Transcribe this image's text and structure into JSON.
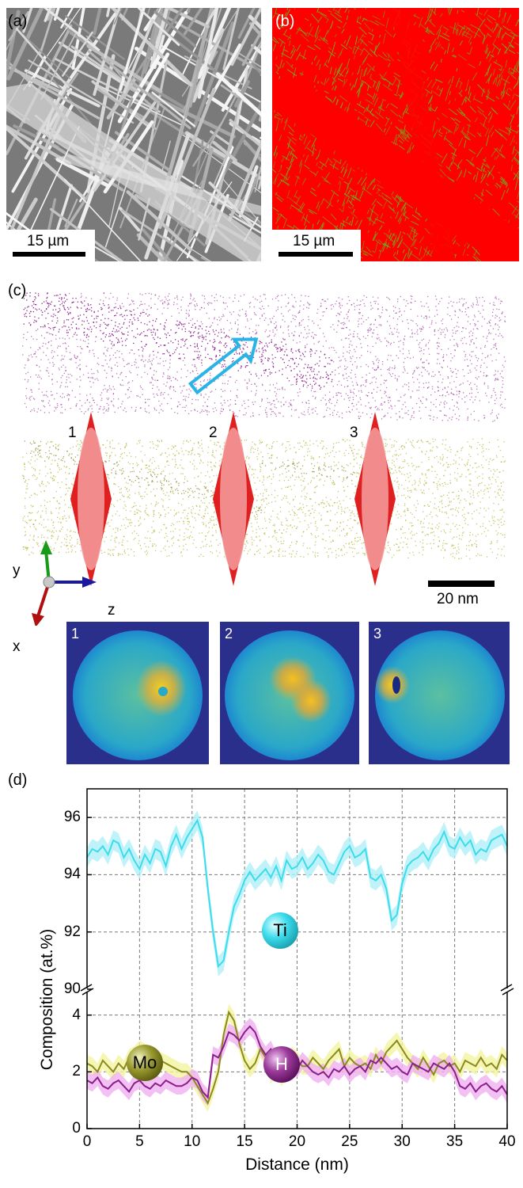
{
  "panels": {
    "a": {
      "label": "(a)",
      "scale": "15 µm"
    },
    "b": {
      "label": "(b)",
      "scale": "15 µm"
    },
    "c": {
      "label": "(c)",
      "scale": "20 nm",
      "markers": [
        "1",
        "2",
        "3"
      ],
      "axes": {
        "y": "y",
        "x": "x",
        "z": "z"
      },
      "slices": [
        "1",
        "2",
        "3"
      ]
    },
    "d": {
      "label": "(d)"
    }
  },
  "colors": {
    "panel_b_phase": "#ff0000",
    "panel_b_secondary": "#6fa81e",
    "cloud_top": "#8a1e8a",
    "cloud_bottom": "#b4b43a",
    "arrow": "#28b4e6",
    "marker": "#e83030",
    "slice_bg": "#2b2f8c",
    "ti": "#3cdcec",
    "mo": "#8a8a20",
    "h": "#8a1e8a"
  },
  "chart_data": {
    "type": "line",
    "xlabel": "Distance (nm)",
    "ylabel": "Composition (at.%)",
    "xlim": [
      0,
      40
    ],
    "x_ticks": [
      "0",
      "5",
      "10",
      "15",
      "20",
      "25",
      "30",
      "35",
      "40"
    ],
    "y_ticks_upper": [
      "90",
      "92",
      "94",
      "96"
    ],
    "y_ticks_lower": [
      "0",
      "2",
      "4"
    ],
    "ylim_upper": [
      90,
      97
    ],
    "ylim_lower": [
      0,
      4.8
    ],
    "grid": true,
    "x": [
      0,
      0.5,
      1,
      1.5,
      2,
      2.5,
      3,
      3.5,
      4,
      4.5,
      5,
      5.5,
      6,
      6.5,
      7,
      7.5,
      8,
      8.5,
      9,
      9.5,
      10,
      10.5,
      11,
      11.5,
      12,
      12.5,
      13,
      13.5,
      14,
      14.5,
      15,
      15.5,
      16,
      16.5,
      17,
      17.5,
      18,
      18.5,
      19,
      19.5,
      20,
      20.5,
      21,
      21.5,
      22,
      22.5,
      23,
      23.5,
      24,
      24.5,
      25,
      25.5,
      26,
      26.5,
      27,
      27.5,
      28,
      28.5,
      29,
      29.5,
      30,
      30.5,
      31,
      31.5,
      32,
      32.5,
      33,
      33.5,
      34,
      34.5,
      35,
      35.5,
      36,
      36.5,
      37,
      37.5,
      38,
      38.5,
      39,
      39.5,
      40
    ],
    "series": [
      {
        "name": "Ti",
        "label": "Ti",
        "axis": "upper",
        "values": [
          94.6,
          94.9,
          94.8,
          95.0,
          94.7,
          95.2,
          95.1,
          94.6,
          94.9,
          94.5,
          94.2,
          94.7,
          94.4,
          94.9,
          94.8,
          94.3,
          95.0,
          95.4,
          94.9,
          95.3,
          95.6,
          95.9,
          95.3,
          93.5,
          92.0,
          90.8,
          91.0,
          92.0,
          92.9,
          93.3,
          93.8,
          94.1,
          93.8,
          94.0,
          94.2,
          93.9,
          94.3,
          93.8,
          94.5,
          94.2,
          94.3,
          94.6,
          94.2,
          94.4,
          94.7,
          94.5,
          94.1,
          94.0,
          94.4,
          94.8,
          95.0,
          94.6,
          94.7,
          94.9,
          93.9,
          93.8,
          94.0,
          93.5,
          92.4,
          92.6,
          93.7,
          94.3,
          94.5,
          94.6,
          94.8,
          94.5,
          94.9,
          95.1,
          95.5,
          95.0,
          94.9,
          95.3,
          95.0,
          95.2,
          94.7,
          94.9,
          94.8,
          95.2,
          95.3,
          95.4,
          95.0
        ]
      },
      {
        "name": "Mo",
        "label": "Mo",
        "axis": "lower",
        "values": [
          2.3,
          2.2,
          2.0,
          2.4,
          2.2,
          2.0,
          2.3,
          2.1,
          2.5,
          2.6,
          2.8,
          2.7,
          2.3,
          2.1,
          2.4,
          2.3,
          2.2,
          2.1,
          2.0,
          2.0,
          1.8,
          1.5,
          1.2,
          0.9,
          1.4,
          2.0,
          3.3,
          4.1,
          3.8,
          3.0,
          2.4,
          2.1,
          2.3,
          2.8,
          2.5,
          1.9,
          2.2,
          1.8,
          2.0,
          2.6,
          2.4,
          2.2,
          2.2,
          2.5,
          2.3,
          2.1,
          2.4,
          2.6,
          2.8,
          2.2,
          2.5,
          2.3,
          2.2,
          2.3,
          2.1,
          2.6,
          2.3,
          2.7,
          2.9,
          3.1,
          2.8,
          2.5,
          2.3,
          2.1,
          2.5,
          2.2,
          1.9,
          2.3,
          2.4,
          2.2,
          2.3,
          2.0,
          2.4,
          2.3,
          2.2,
          2.5,
          2.2,
          2.3,
          2.1,
          2.6,
          2.4
        ]
      },
      {
        "name": "H",
        "label": "H",
        "axis": "lower",
        "values": [
          1.7,
          1.6,
          1.8,
          1.5,
          1.4,
          1.6,
          1.7,
          1.5,
          1.3,
          1.6,
          1.7,
          1.5,
          1.4,
          1.6,
          1.5,
          1.7,
          1.6,
          1.5,
          1.5,
          1.6,
          1.8,
          1.7,
          1.3,
          1.1,
          2.6,
          2.5,
          2.9,
          3.4,
          3.3,
          3.1,
          3.4,
          3.6,
          3.4,
          2.9,
          2.6,
          2.8,
          2.4,
          2.5,
          2.6,
          2.3,
          2.1,
          2.4,
          2.2,
          2.0,
          1.9,
          2.0,
          1.8,
          2.1,
          2.0,
          2.2,
          1.9,
          2.1,
          2.2,
          2.0,
          2.4,
          2.3,
          2.5,
          2.3,
          2.1,
          2.2,
          2.0,
          1.9,
          2.3,
          2.2,
          2.1,
          2.0,
          2.3,
          2.2,
          2.1,
          2.3,
          2.0,
          1.5,
          1.4,
          1.6,
          1.3,
          1.5,
          1.6,
          1.4,
          1.3,
          1.5,
          1.2
        ]
      }
    ]
  }
}
